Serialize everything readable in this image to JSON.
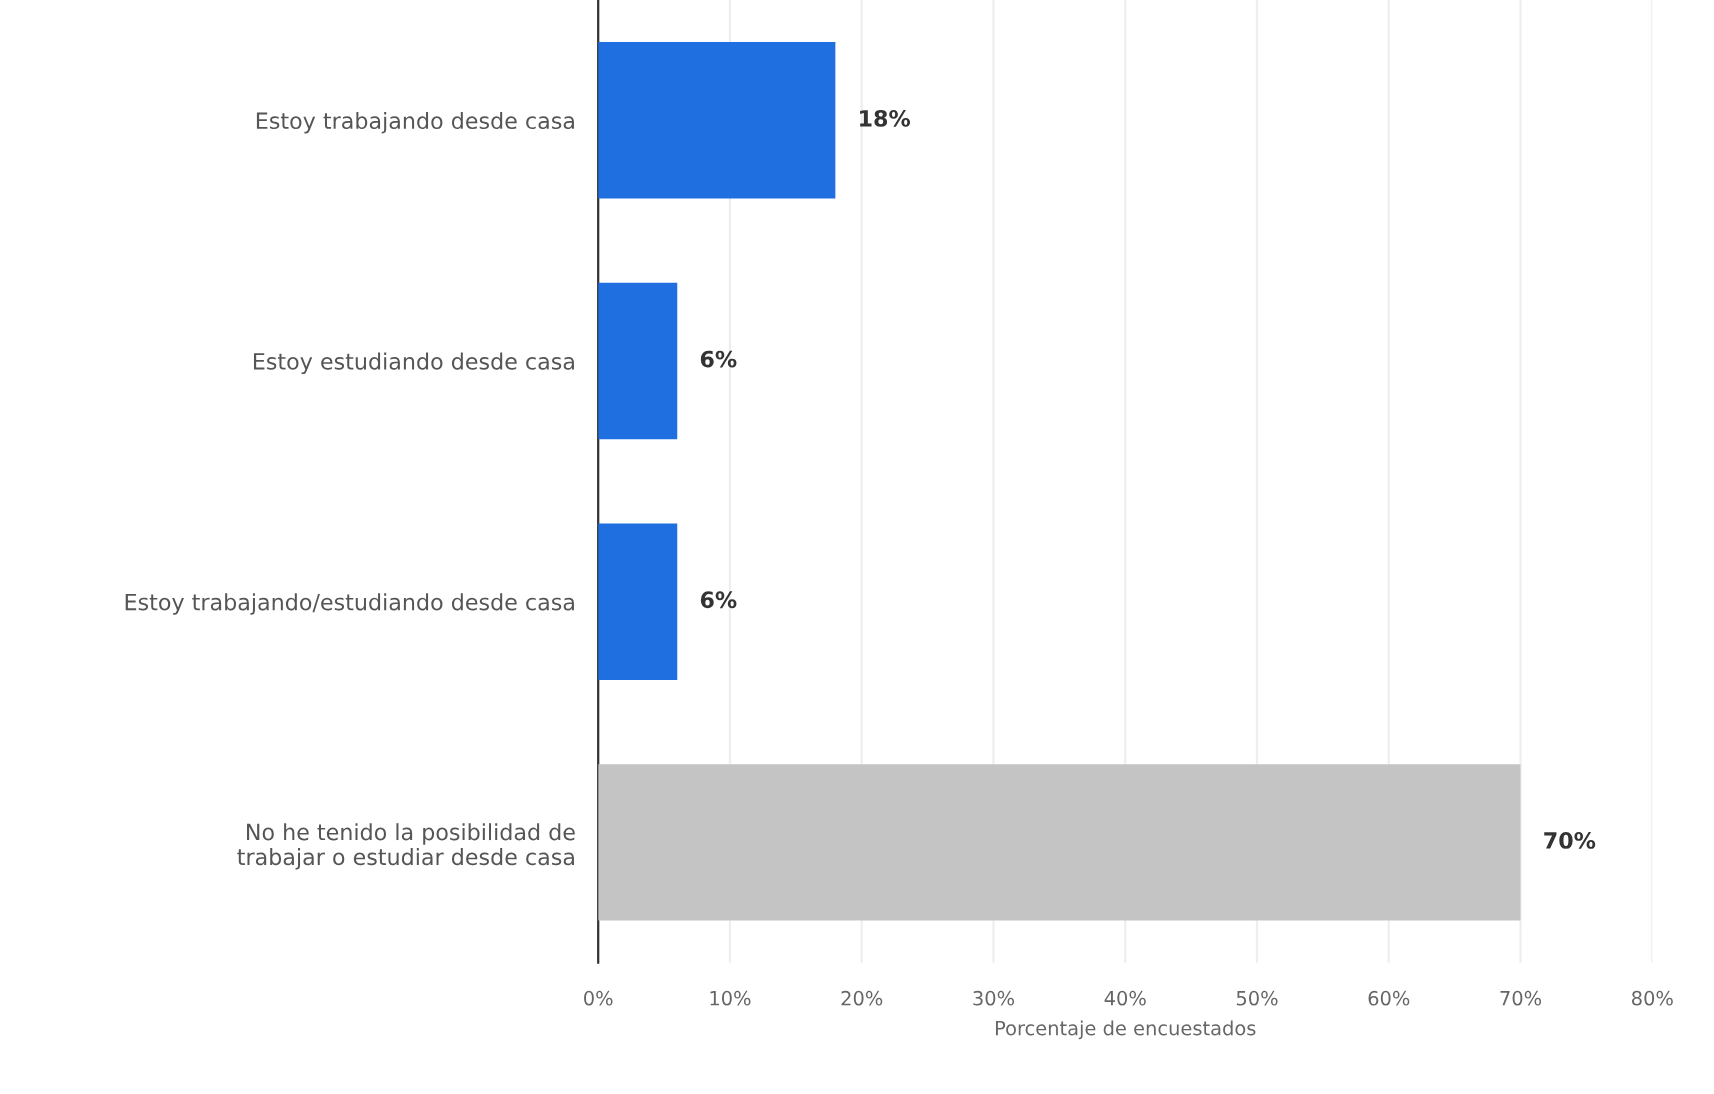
{
  "chart_data": {
    "type": "bar",
    "orientation": "horizontal",
    "categories": [
      "Estoy trabajando desde casa",
      "Estoy estudiando desde casa",
      "Estoy trabajando/estudiando desde casa",
      "No he tenido la posibilidad de\ntrabajar o estudiar desde casa"
    ],
    "values": [
      18,
      6,
      6,
      70
    ],
    "colors": [
      "#1f6fe0",
      "#1f6fe0",
      "#1f6fe0",
      "#c4c4c4"
    ],
    "value_labels": [
      "18%",
      "6%",
      "6%",
      "70%"
    ],
    "xlabel": "Porcentaje de encuestados",
    "xlim": [
      0,
      80
    ],
    "xticks": [
      {
        "value": 0,
        "label": "0%"
      },
      {
        "value": 10,
        "label": "10%"
      },
      {
        "value": 20,
        "label": "20%"
      },
      {
        "value": 30,
        "label": "30%"
      },
      {
        "value": 40,
        "label": "40%"
      },
      {
        "value": 50,
        "label": "50%"
      },
      {
        "value": 60,
        "label": "60%"
      },
      {
        "value": 70,
        "label": "70%"
      },
      {
        "value": 80,
        "label": "80%"
      }
    ],
    "grid": "x"
  }
}
